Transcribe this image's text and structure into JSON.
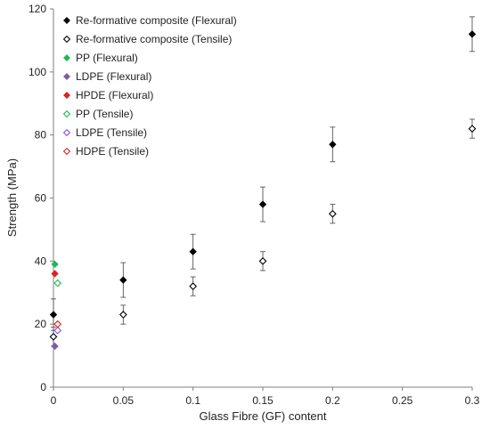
{
  "chart_data": {
    "type": "scatter",
    "xlabel": "Glass Fibre (GF) content",
    "ylabel": "Strength (MPa)",
    "xlim": [
      0,
      0.3
    ],
    "ylim": [
      0,
      120
    ],
    "x_ticks": [
      "0",
      "0.05",
      "0.1",
      "0.15",
      "0.2",
      "0.25",
      "0.3"
    ],
    "x_tick_values": [
      0,
      0.05,
      0.1,
      0.15,
      0.2,
      0.25,
      0.3
    ],
    "y_ticks": [
      "0",
      "20",
      "40",
      "60",
      "80",
      "100",
      "120"
    ],
    "y_tick_values": [
      0,
      20,
      40,
      60,
      80,
      100,
      120
    ],
    "grid": false,
    "legend_position": "top-left",
    "series": [
      {
        "name": "Re-formative composite (Flexural)",
        "marker": "filled-diamond",
        "color": "#000000",
        "points": [
          {
            "x": 0,
            "y": 23,
            "err": 5
          },
          {
            "x": 0.05,
            "y": 34,
            "err": 5.5
          },
          {
            "x": 0.1,
            "y": 43,
            "err": 5.5
          },
          {
            "x": 0.15,
            "y": 58,
            "err": 5.5
          },
          {
            "x": 0.2,
            "y": 77,
            "err": 5.5
          },
          {
            "x": 0.3,
            "y": 112,
            "err": 5.5
          }
        ]
      },
      {
        "name": "Re-formative composite (Tensile)",
        "marker": "open-diamond",
        "color": "#000000",
        "points": [
          {
            "x": 0,
            "y": 16,
            "err": 3
          },
          {
            "x": 0.05,
            "y": 23,
            "err": 3
          },
          {
            "x": 0.1,
            "y": 32,
            "err": 3
          },
          {
            "x": 0.15,
            "y": 40,
            "err": 3
          },
          {
            "x": 0.2,
            "y": 55,
            "err": 3
          },
          {
            "x": 0.3,
            "y": 82,
            "err": 3
          }
        ]
      },
      {
        "name": "PP (Flexural)",
        "marker": "filled-diamond",
        "color": "#1db954",
        "points": [
          {
            "x": 0.001,
            "y": 39
          }
        ]
      },
      {
        "name": "LDPE (Flexural)",
        "marker": "filled-diamond",
        "color": "#7b5ea7",
        "points": [
          {
            "x": 0.001,
            "y": 13
          }
        ]
      },
      {
        "name": "HPDE (Flexural)",
        "marker": "filled-diamond",
        "color": "#e02020",
        "points": [
          {
            "x": 0.001,
            "y": 36
          }
        ]
      },
      {
        "name": "PP (Tensile)",
        "marker": "open-diamond",
        "color": "#1db954",
        "points": [
          {
            "x": 0.003,
            "y": 33
          }
        ]
      },
      {
        "name": "LDPE (Tensile)",
        "marker": "open-diamond",
        "color": "#8a4fd0",
        "points": [
          {
            "x": 0.003,
            "y": 18
          }
        ]
      },
      {
        "name": "HDPE (Tensile)",
        "marker": "open-diamond",
        "color": "#e02020",
        "points": [
          {
            "x": 0.003,
            "y": 20
          }
        ]
      }
    ]
  }
}
